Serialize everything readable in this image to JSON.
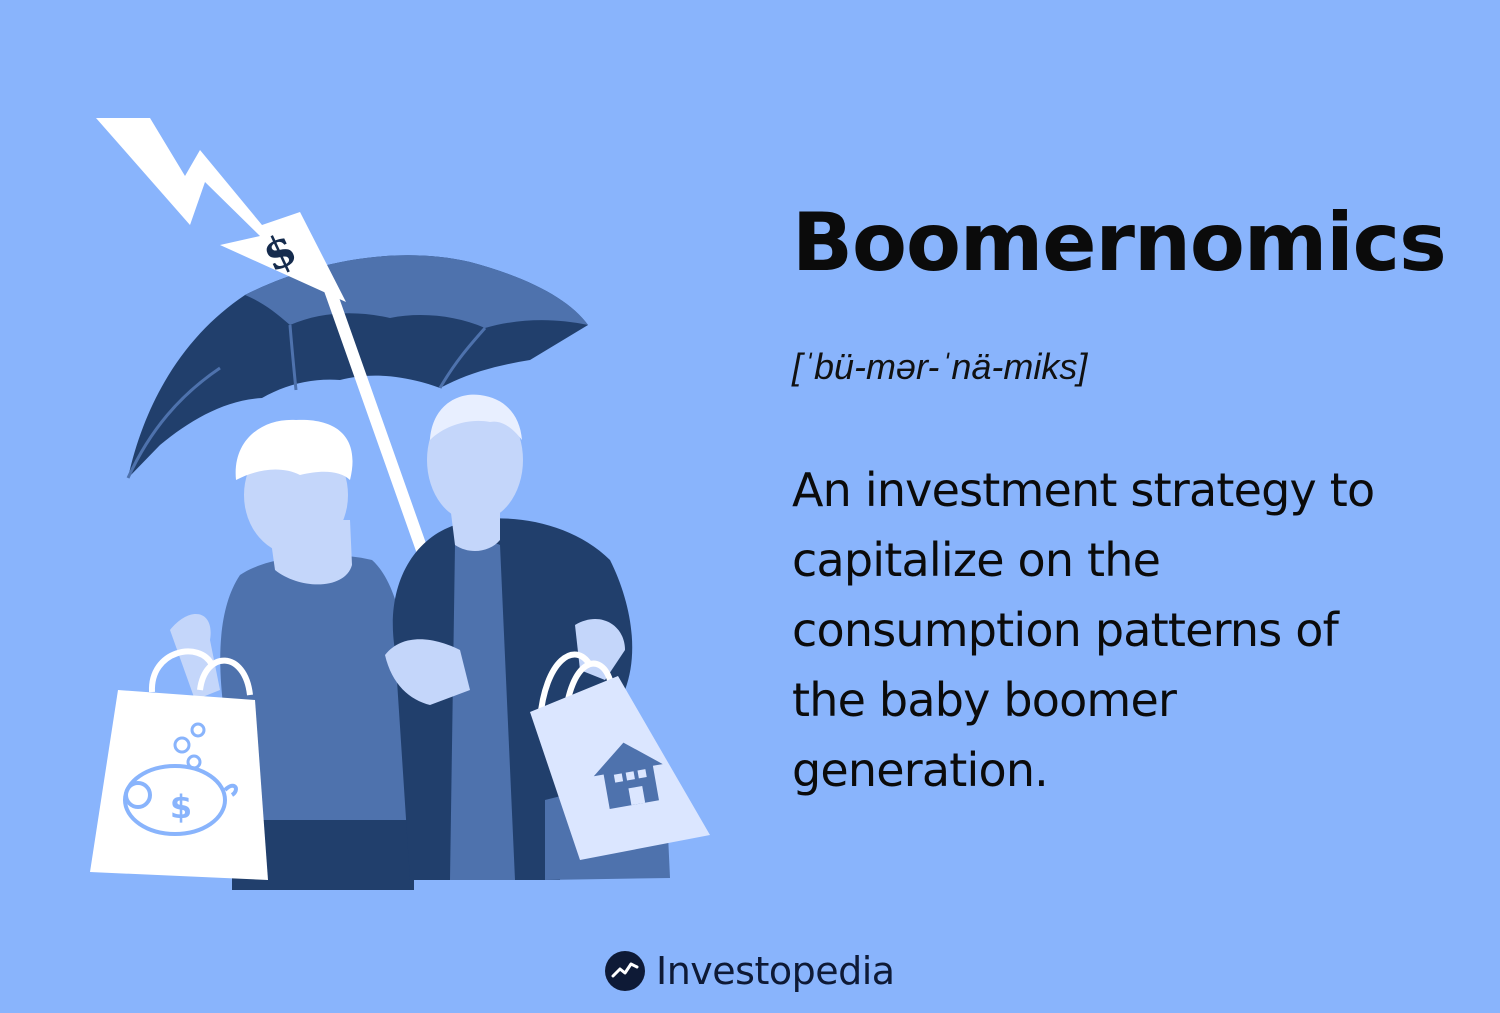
{
  "definition_card": {
    "term": "Boomernomics",
    "pronunciation": "[ˈbü-mər-ˈnä-miks]",
    "definition": "An investment strategy to capitalize on the consumption patterns of the baby boomer generation."
  },
  "illustration": {
    "bolt_symbol": "$",
    "bag_symbol": "$",
    "icon_names": [
      "lightning-bolt",
      "umbrella",
      "piggy-bank",
      "house"
    ]
  },
  "brand": {
    "name": "Investopedia"
  },
  "colors": {
    "background": "#89b4fc",
    "umbrella_light": "#5077b5",
    "umbrella_dark": "#213f6c",
    "text": "#0b0b0b"
  }
}
